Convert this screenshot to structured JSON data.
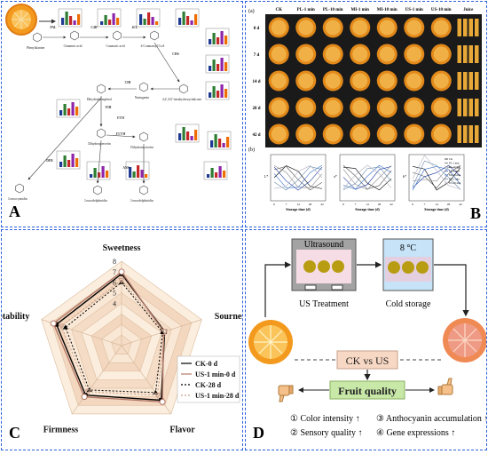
{
  "panels": {
    "a": "A",
    "b": "B",
    "c": "C",
    "d": "D"
  },
  "pathway": {
    "compounds": [
      "Phenylalanine",
      "Cinnamic acid",
      "Coumaric acid",
      "4-Coumaroyl CoA",
      "Dihydrokaempferol",
      "Naringenin",
      "4,2',4',6'-tetrahydroxychalcone",
      "Dihydroquercetin",
      "Dihydromyricetin",
      "Leucocyanidin",
      "Leucodelphinidin",
      "Leucodelphinidin"
    ],
    "enzymes": [
      "PAL",
      "C4H",
      "4CL",
      "CHS",
      "CHI",
      "F3H",
      "F3'H",
      "F3'5'H",
      "DFR",
      "ANS"
    ]
  },
  "photo_grid": {
    "panel_letter_a": "(a)",
    "panel_letter_b": "(b)",
    "columns": [
      "CK",
      "PL-1 min",
      "PL-10 min",
      "MI-1 min",
      "MI-10 min",
      "US-1 min",
      "US-10 min",
      "Juice"
    ],
    "rows": [
      "0 d",
      "7 d",
      "14 d",
      "28 d",
      "42 d"
    ]
  },
  "line_charts": {
    "xlabel": "Storage time (d)",
    "ticks": [
      "0",
      "7",
      "14",
      "28",
      "42"
    ],
    "ylabels": [
      "L*",
      "a*",
      "b*"
    ],
    "legend": [
      "CK",
      "PL-1 min",
      "PL-10 min",
      "MI-1 min",
      "MI-10 min",
      "US-1 min",
      "US-10 min"
    ]
  },
  "chart_data": {
    "type": "radar",
    "axes": [
      "Sweetness",
      "Sourness",
      "Flavor",
      "Firmness",
      "Acceptability"
    ],
    "rlim": [
      0,
      8
    ],
    "radial_ticks": [
      "4",
      "5",
      "6",
      "7",
      "8"
    ],
    "series": [
      {
        "name": "CK-0 d",
        "values": [
          6.8,
          4.3,
          6.4,
          5.8,
          6.5
        ],
        "color": "#000000"
      },
      {
        "name": "US-1 min-0 d",
        "values": [
          7.0,
          4.2,
          6.6,
          6.0,
          6.8
        ],
        "color": "#b47a6a"
      },
      {
        "name": "CK-28 d",
        "values": [
          6.0,
          4.1,
          5.5,
          5.2,
          5.6
        ],
        "color": "#000000"
      },
      {
        "name": "US-1 min-28 d",
        "values": [
          6.2,
          4.3,
          5.8,
          5.4,
          6.0
        ],
        "color": "#c8a08a"
      }
    ]
  },
  "diagram": {
    "ultrasound_label": "Ultrasound",
    "temp_label": "8 °C",
    "us_treatment": "US Treatment",
    "cold_storage": "Cold storage",
    "ck_vs_us": "CK vs US",
    "fruit_quality": "Fruit quality",
    "outcomes": [
      "① Color intensity ↑",
      "② Sensory quality ↑",
      "③ Anthocyanin accumulation ↑",
      "④ Gene expressions ↑"
    ]
  }
}
